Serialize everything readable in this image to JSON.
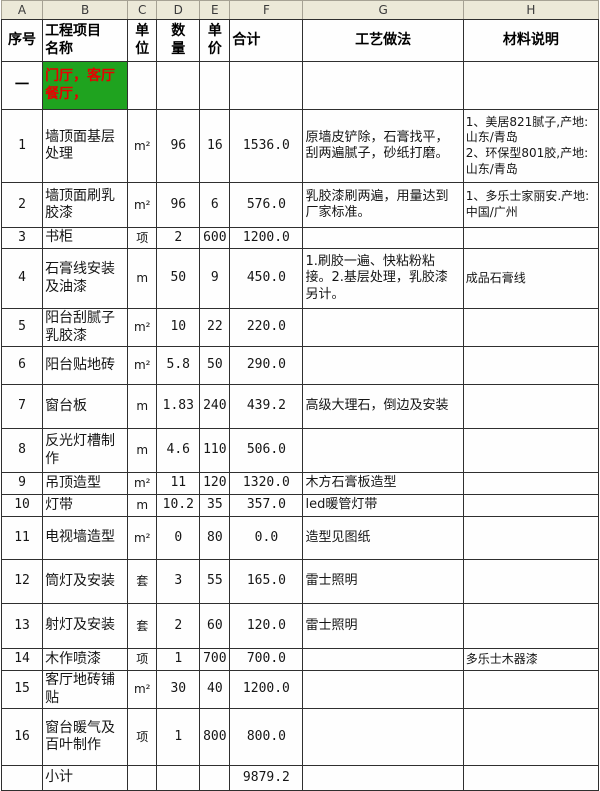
{
  "spreadsheet": {
    "column_letters": [
      "A",
      "B",
      "C",
      "D",
      "E",
      "F",
      "G",
      "H"
    ],
    "headers": {
      "no": "序号",
      "item": "工程项目\n名称",
      "unit": "单\n位",
      "qty": "数\n量",
      "price": "单\n价",
      "total": "合计",
      "method": "工艺做法",
      "material": "材料说明"
    },
    "rows": [
      {
        "type": "section",
        "no": "一",
        "item": "门厅，客厅餐厅，",
        "unit": "",
        "qty": "",
        "price": "",
        "total": "",
        "method": "",
        "material": ""
      },
      {
        "type": "item",
        "no": "1",
        "item": "墙顶面基层处理",
        "unit": "m²",
        "qty": "96",
        "price": "16",
        "total": "1536.0",
        "method": "原墙皮铲除，石膏找平，刮两遍腻子，砂纸打磨。",
        "material": "1、美居821腻子,产地:山东/青岛\n2、环保型801胶,产地:山东/青岛"
      },
      {
        "type": "item",
        "no": "2",
        "item": "墙顶面刷乳胶漆",
        "unit": "m²",
        "qty": "96",
        "price": "6",
        "total": "576.0",
        "method": "乳胶漆刷两遍，用量达到厂家标准。",
        "material": "1、多乐士家丽安.产地:中国/广州"
      },
      {
        "type": "item",
        "no": "3",
        "item": "书柜",
        "unit": "项",
        "qty": "2",
        "price": "600",
        "total": "1200.0",
        "method": "",
        "material": ""
      },
      {
        "type": "item",
        "no": "4",
        "item": "石膏线安装及油漆",
        "unit": "m",
        "qty": "50",
        "price": "9",
        "total": "450.0",
        "method": "1.刷胶一遍、快粘粉粘接。2.基层处理，乳胶漆另计。",
        "material": "成品石膏线"
      },
      {
        "type": "item",
        "no": "5",
        "item": "阳台刮腻子乳胶漆",
        "unit": "m²",
        "qty": "10",
        "price": "22",
        "total": "220.0",
        "method": "",
        "material": ""
      },
      {
        "type": "item",
        "no": "6",
        "item": "阳台贴地砖",
        "unit": "m²",
        "qty": "5.8",
        "price": "50",
        "total": "290.0",
        "method": "",
        "material": ""
      },
      {
        "type": "item",
        "no": "7",
        "item": "窗台板",
        "unit": "m",
        "qty": "1.83",
        "price": "240",
        "total": "439.2",
        "method": "高级大理石，倒边及安装",
        "material": ""
      },
      {
        "type": "item",
        "no": "8",
        "item": "反光灯槽制作",
        "unit": "m",
        "qty": "4.6",
        "price": "110",
        "total": "506.0",
        "method": "",
        "material": ""
      },
      {
        "type": "item",
        "no": "9",
        "item": "吊顶造型",
        "unit": "m²",
        "qty": "11",
        "price": "120",
        "total": "1320.0",
        "method": "木方石膏板造型",
        "material": ""
      },
      {
        "type": "item",
        "no": "10",
        "item": "灯带",
        "unit": "m",
        "qty": "10.2",
        "price": "35",
        "total": "357.0",
        "method": "led暖管灯带",
        "material": ""
      },
      {
        "type": "item",
        "no": "11",
        "item": "电视墙造型",
        "unit": "m²",
        "qty": "0",
        "price": "80",
        "total": "0.0",
        "method": "造型见图纸",
        "material": ""
      },
      {
        "type": "item",
        "no": "12",
        "item": "筒灯及安装",
        "unit": "套",
        "qty": "3",
        "price": "55",
        "total": "165.0",
        "method": "雷士照明",
        "material": ""
      },
      {
        "type": "item",
        "no": "13",
        "item": "射灯及安装",
        "unit": "套",
        "qty": "2",
        "price": "60",
        "total": "120.0",
        "method": "雷士照明",
        "material": ""
      },
      {
        "type": "item",
        "no": "14",
        "item": "木作喷漆",
        "unit": "项",
        "qty": "1",
        "price": "700",
        "total": "700.0",
        "method": "",
        "material": "多乐士木器漆"
      },
      {
        "type": "item",
        "no": "15",
        "item": "客厅地砖铺贴",
        "unit": "m²",
        "qty": "30",
        "price": "40",
        "total": "1200.0",
        "method": "",
        "material": ""
      },
      {
        "type": "item",
        "no": "16",
        "item": "窗台暖气及百叶制作",
        "unit": "项",
        "qty": "1",
        "price": "800",
        "total": "800.0",
        "method": "",
        "material": ""
      },
      {
        "type": "subtotal",
        "no": "",
        "item": "小计",
        "unit": "",
        "qty": "",
        "price": "",
        "total": "9879.2",
        "method": "",
        "material": ""
      }
    ],
    "colors": {
      "section_bg": "#1fa31f",
      "section_text": "#e80000",
      "column_header_bg": "#ece9d8",
      "grid": "#2f2f2f"
    }
  }
}
